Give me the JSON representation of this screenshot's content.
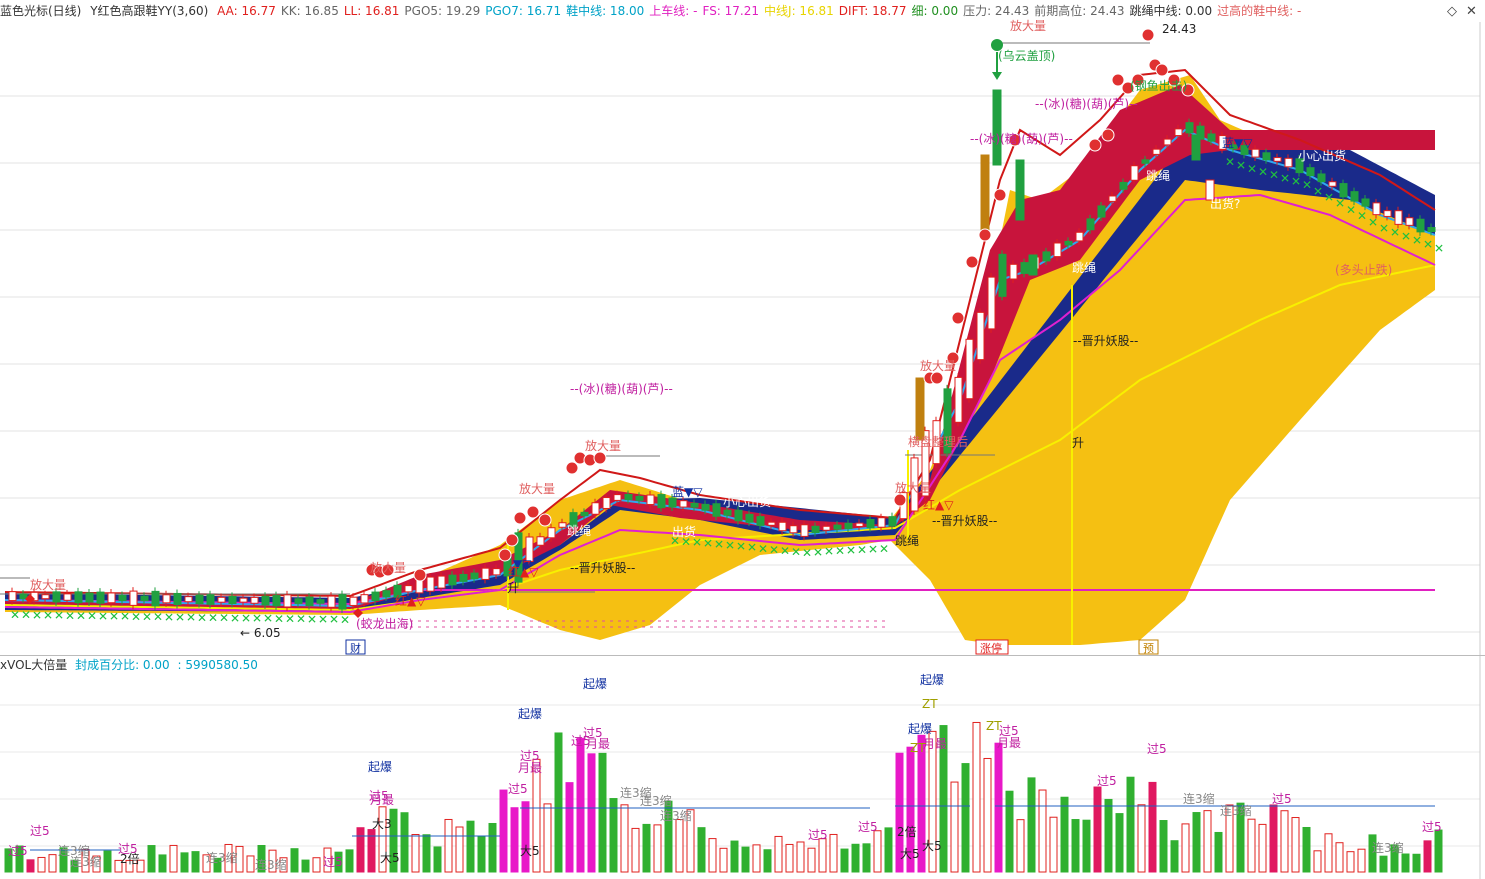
{
  "header": {
    "cursor": "蓝色光标(日线)",
    "indicator": "Y红色高跟鞋YY(3,60)",
    "items": [
      {
        "label": "AA: 16.77",
        "color": "#e0201e"
      },
      {
        "label": "KK: 16.85",
        "color": "#666666"
      },
      {
        "label": "LL: 16.81",
        "color": "#e0201e"
      },
      {
        "label": "PGO5: 19.29",
        "color": "#666666"
      },
      {
        "label": "PGO7: 16.71",
        "color": "#00a2c7"
      },
      {
        "label": "鞋中线: 18.00",
        "color": "#00a2c7"
      },
      {
        "label": "上车线: -",
        "color": "#e020c0"
      },
      {
        "label": "FS: 17.21",
        "color": "#e020c0"
      },
      {
        "label": "中线J: 16.81",
        "color": "#e8d400"
      },
      {
        "label": "DIFT: 18.77",
        "color": "#e0201e"
      },
      {
        "label": "细: 0.00",
        "color": "#209020"
      },
      {
        "label": "压力: 24.43",
        "color": "#666666"
      },
      {
        "label": "前期高位: 24.43",
        "color": "#666666"
      },
      {
        "label": "跳绳中线: 0.00",
        "color": "#333333"
      },
      {
        "label": "过高的鞋中线: -",
        "color": "#e06060"
      }
    ]
  },
  "volume_header": {
    "name": "xVOL大倍量",
    "ratio": "封成百分比: 0.00",
    "value": ": 5990580.50"
  },
  "controls": {
    "diamond": "◇",
    "close": "✕"
  },
  "price_labels": [
    {
      "t": "放大量",
      "x": 30,
      "y": 589,
      "c": "#e06060"
    },
    {
      "t": "放大量",
      "x": 1010,
      "y": 30,
      "c": "#e06060"
    },
    {
      "t": "24.43",
      "x": 1162,
      "y": 33,
      "c": "#222222"
    },
    {
      "t": "(乌云盖顶)",
      "x": 998,
      "y": 60,
      "c": "#20a040"
    },
    {
      "t": "--(冰)(糖)(葫)(芦)--",
      "x": 1035,
      "y": 108,
      "c": "#c020a0"
    },
    {
      "t": "--(冰)(糖)(葫)(芦)--",
      "x": 970,
      "y": 143,
      "c": "#c020a0"
    },
    {
      "t": "(钢鱼出击)",
      "x": 1130,
      "y": 90,
      "c": "#20a040"
    },
    {
      "t": "蓝▼▽",
      "x": 1222,
      "y": 147,
      "c": "#1030a0"
    },
    {
      "t": "小心出货",
      "x": 1298,
      "y": 160,
      "c": "#ffffff"
    },
    {
      "t": "跳绳",
      "x": 1146,
      "y": 180,
      "c": "#ffffff"
    },
    {
      "t": "出货?",
      "x": 1210,
      "y": 208,
      "c": "#ffffff"
    },
    {
      "t": "跳绳",
      "x": 1072,
      "y": 272,
      "c": "#ffffff"
    },
    {
      "t": "(多头止跌)",
      "x": 1335,
      "y": 274,
      "c": "#e06060"
    },
    {
      "t": "--晋升妖股--",
      "x": 1073,
      "y": 345,
      "c": "#222222"
    },
    {
      "t": "--(冰)(糖)(葫)(芦)--",
      "x": 570,
      "y": 393,
      "c": "#c020a0"
    },
    {
      "t": "升",
      "x": 1072,
      "y": 447,
      "c": "#222222"
    },
    {
      "t": "放大量",
      "x": 585,
      "y": 450,
      "c": "#e06060"
    },
    {
      "t": "放大量",
      "x": 519,
      "y": 493,
      "c": "#e06060"
    },
    {
      "t": "放大量",
      "x": 920,
      "y": 370,
      "c": "#e06060"
    },
    {
      "t": "放大量",
      "x": 895,
      "y": 492,
      "c": "#e06060"
    },
    {
      "t": "横盘整理后",
      "x": 908,
      "y": 446,
      "c": "#e06060"
    },
    {
      "t": "蓝▼▽",
      "x": 672,
      "y": 496,
      "c": "#1030a0"
    },
    {
      "t": "小心出货",
      "x": 723,
      "y": 506,
      "c": "#ffffff"
    },
    {
      "t": "红▲▽",
      "x": 923,
      "y": 509,
      "c": "#e0201e"
    },
    {
      "t": "--晋升妖股--",
      "x": 932,
      "y": 525,
      "c": "#222222"
    },
    {
      "t": "出货",
      "x": 672,
      "y": 536,
      "c": "#ffffff"
    },
    {
      "t": "跳绳",
      "x": 567,
      "y": 535,
      "c": "#ffffff"
    },
    {
      "t": "跳绳",
      "x": 895,
      "y": 545,
      "c": "#222222"
    },
    {
      "t": "▼▽",
      "x": 513,
      "y": 568,
      "c": "#1030a0"
    },
    {
      "t": "红▲▽",
      "x": 508,
      "y": 576,
      "c": "#e0201e"
    },
    {
      "t": "--晋升妖股--",
      "x": 570,
      "y": 572,
      "c": "#222222"
    },
    {
      "t": "升",
      "x": 507,
      "y": 592,
      "c": "#222222"
    },
    {
      "t": "放大量",
      "x": 370,
      "y": 572,
      "c": "#e06060"
    },
    {
      "t": "红▲▽",
      "x": 395,
      "y": 605,
      "c": "#e0201e"
    },
    {
      "t": "(蛟龙出海)",
      "x": 356,
      "y": 628,
      "c": "#c020a0"
    },
    {
      "t": "← 6.05",
      "x": 240,
      "y": 637,
      "c": "#222222"
    }
  ],
  "bottom_tags": [
    {
      "t": "财",
      "x": 350,
      "y": 652,
      "c": "#1030a0"
    },
    {
      "t": "涨停",
      "x": 980,
      "y": 652,
      "c": "#e0201e"
    },
    {
      "t": "预",
      "x": 1143,
      "y": 652,
      "c": "#c08000"
    }
  ],
  "volume_labels": [
    {
      "t": "起爆",
      "x": 583,
      "y": 688,
      "c": "#1030a0"
    },
    {
      "t": "起爆",
      "x": 920,
      "y": 684,
      "c": "#1030a0"
    },
    {
      "t": "ZT",
      "x": 922,
      "y": 708,
      "c": "#a0a000"
    },
    {
      "t": "起爆",
      "x": 518,
      "y": 718,
      "c": "#1030a0"
    },
    {
      "t": "起爆",
      "x": 908,
      "y": 733,
      "c": "#1030a0"
    },
    {
      "t": "ZT",
      "x": 986,
      "y": 730,
      "c": "#a0a000"
    },
    {
      "t": "过5",
      "x": 999,
      "y": 735,
      "c": "#c020a0"
    },
    {
      "t": "月最",
      "x": 997,
      "y": 747,
      "c": "#c020a0"
    },
    {
      "t": "过5",
      "x": 583,
      "y": 737,
      "c": "#c020a0"
    },
    {
      "t": "过5",
      "x": 571,
      "y": 745,
      "c": "#c020a0"
    },
    {
      "t": "月最",
      "x": 586,
      "y": 748,
      "c": "#c020a0"
    },
    {
      "t": "月最",
      "x": 923,
      "y": 748,
      "c": "#c020a0"
    },
    {
      "t": "ZT",
      "x": 910,
      "y": 752,
      "c": "#a0a000"
    },
    {
      "t": "过5",
      "x": 520,
      "y": 760,
      "c": "#c020a0"
    },
    {
      "t": "月最",
      "x": 518,
      "y": 772,
      "c": "#c020a0"
    },
    {
      "t": "过5",
      "x": 1147,
      "y": 753,
      "c": "#c020a0"
    },
    {
      "t": "起爆",
      "x": 368,
      "y": 771,
      "c": "#1030a0"
    },
    {
      "t": "过5",
      "x": 1097,
      "y": 785,
      "c": "#c020a0"
    },
    {
      "t": "过5",
      "x": 369,
      "y": 800,
      "c": "#c020a0"
    },
    {
      "t": "月最",
      "x": 370,
      "y": 804,
      "c": "#c020a0"
    },
    {
      "t": "过5",
      "x": 508,
      "y": 793,
      "c": "#c020a0"
    },
    {
      "t": "连3缩",
      "x": 620,
      "y": 797,
      "c": "#888888"
    },
    {
      "t": "连3缩",
      "x": 640,
      "y": 805,
      "c": "#888888"
    },
    {
      "t": "连3缩",
      "x": 1183,
      "y": 803,
      "c": "#888888"
    },
    {
      "t": "过5",
      "x": 1272,
      "y": 803,
      "c": "#c020a0"
    },
    {
      "t": "连3缩",
      "x": 1220,
      "y": 815,
      "c": "#888888"
    },
    {
      "t": "连3缩",
      "x": 660,
      "y": 820,
      "c": "#888888"
    },
    {
      "t": "大3",
      "x": 372,
      "y": 828,
      "c": "#222222"
    },
    {
      "t": "2倍",
      "x": 897,
      "y": 836,
      "c": "#222222"
    },
    {
      "t": "过5",
      "x": 1422,
      "y": 831,
      "c": "#c020a0"
    },
    {
      "t": "过5",
      "x": 30,
      "y": 835,
      "c": "#c020a0"
    },
    {
      "t": "过5",
      "x": 858,
      "y": 831,
      "c": "#c020a0"
    },
    {
      "t": "过5",
      "x": 808,
      "y": 839,
      "c": "#c020a0"
    },
    {
      "t": "大5",
      "x": 520,
      "y": 855,
      "c": "#222222"
    },
    {
      "t": "大5",
      "x": 922,
      "y": 850,
      "c": "#222222"
    },
    {
      "t": "过5",
      "x": 8,
      "y": 855,
      "c": "#c020a0"
    },
    {
      "t": "过5",
      "x": 118,
      "y": 853,
      "c": "#c020a0"
    },
    {
      "t": "连3缩",
      "x": 58,
      "y": 855,
      "c": "#888888"
    },
    {
      "t": "连3缩",
      "x": 1372,
      "y": 852,
      "c": "#888888"
    },
    {
      "t": "2倍",
      "x": 120,
      "y": 863,
      "c": "#222222"
    },
    {
      "t": "连3缩",
      "x": 206,
      "y": 862,
      "c": "#888888"
    },
    {
      "t": "大5",
      "x": 380,
      "y": 862,
      "c": "#222222"
    },
    {
      "t": "大5",
      "x": 900,
      "y": 858,
      "c": "#222222"
    },
    {
      "t": "连3缩",
      "x": 255,
      "y": 869,
      "c": "#888888"
    },
    {
      "t": "过5",
      "x": 323,
      "y": 866,
      "c": "#c020a0"
    },
    {
      "t": "连3缩",
      "x": 70,
      "y": 866,
      "c": "#888888"
    }
  ],
  "chart_data": [
    {
      "type": "candlestick",
      "description": "Daily K-line with shoe-band indicator (price panel)",
      "ylim": [
        4,
        26
      ],
      "x": [
        0,
        200
      ],
      "series": [
        {
          "name": "DIFT",
          "color": "#d01818"
        },
        {
          "name": "PGO7",
          "color": "#20a0e0"
        },
        {
          "name": "FS",
          "color": "#e020c0"
        },
        {
          "name": "中线J",
          "color": "#f0e000"
        }
      ],
      "annotations": [
        {
          "text": "24.43",
          "type": "high"
        },
        {
          "text": "6.05",
          "type": "low"
        }
      ]
    },
    {
      "type": "bar",
      "description": "xVOL大倍量 volume panel",
      "series": [
        {
          "name": "VOL"
        }
      ],
      "values_note": "relative bar heights"
    }
  ]
}
